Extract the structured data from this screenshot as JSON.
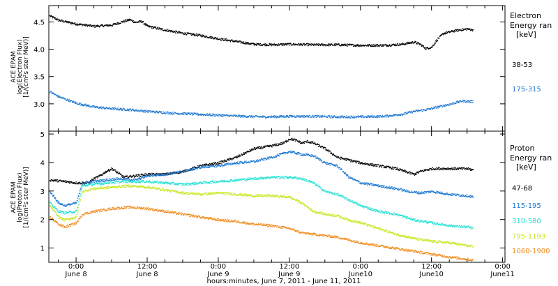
{
  "chart_data": [
    {
      "type": "scatter",
      "panel": "electron",
      "ylabel_lines": [
        "ACE EPAM",
        "log(Electron Flux)",
        "[1/(cm²s ster MeV)]"
      ],
      "ylim": [
        2.5,
        4.8
      ],
      "yticks": [
        3.0,
        3.5,
        4.0,
        4.5
      ],
      "ytick_labels": [
        "3.0",
        "3.5",
        "4.0",
        "4.5"
      ],
      "legend_title": [
        "Electron",
        "Energy ran",
        "[keV]"
      ],
      "series": [
        {
          "name": "38-53",
          "color": "#000000",
          "points": [
            [
              -4.5,
              4.62
            ],
            [
              -3,
              4.54
            ],
            [
              0,
              4.47
            ],
            [
              3,
              4.43
            ],
            [
              6,
              4.45
            ],
            [
              8,
              4.52
            ],
            [
              9,
              4.55
            ],
            [
              10,
              4.5
            ],
            [
              11,
              4.52
            ],
            [
              12,
              4.43
            ],
            [
              15,
              4.36
            ],
            [
              18,
              4.3
            ],
            [
              21,
              4.26
            ],
            [
              24,
              4.2
            ],
            [
              27,
              4.15
            ],
            [
              30,
              4.1
            ],
            [
              33,
              4.09
            ],
            [
              36,
              4.1
            ],
            [
              40,
              4.09
            ],
            [
              44,
              4.09
            ],
            [
              48,
              4.08
            ],
            [
              52,
              4.08
            ],
            [
              55,
              4.1
            ],
            [
              57,
              4.14
            ],
            [
              58,
              4.1
            ],
            [
              59,
              4.02
            ],
            [
              60,
              4.05
            ],
            [
              61,
              4.2
            ],
            [
              62,
              4.3
            ],
            [
              64,
              4.35
            ],
            [
              66,
              4.38
            ],
            [
              67,
              4.36
            ]
          ]
        },
        {
          "name": "175-315",
          "color": "#1e78d2",
          "points": [
            [
              -4.5,
              3.23
            ],
            [
              -3,
              3.14
            ],
            [
              0,
              3.02
            ],
            [
              3,
              2.95
            ],
            [
              6,
              2.92
            ],
            [
              9,
              2.9
            ],
            [
              12,
              2.87
            ],
            [
              16,
              2.84
            ],
            [
              20,
              2.82
            ],
            [
              24,
              2.8
            ],
            [
              28,
              2.78
            ],
            [
              32,
              2.77
            ],
            [
              36,
              2.78
            ],
            [
              40,
              2.78
            ],
            [
              44,
              2.77
            ],
            [
              48,
              2.77
            ],
            [
              52,
              2.78
            ],
            [
              55,
              2.82
            ],
            [
              57,
              2.87
            ],
            [
              59,
              2.9
            ],
            [
              61,
              2.95
            ],
            [
              63,
              3.0
            ],
            [
              65,
              3.06
            ],
            [
              67,
              3.05
            ]
          ]
        }
      ]
    },
    {
      "type": "scatter",
      "panel": "proton",
      "ylabel_lines": [
        "ACE EPAM",
        "log(Proton Flux)",
        "[1/(cm²s ster MeV)]"
      ],
      "ylim": [
        0.5,
        5.1
      ],
      "yticks": [
        1,
        2,
        3,
        4,
        5
      ],
      "ytick_labels": [
        "1",
        "2",
        "3",
        "4",
        "5"
      ],
      "legend_title": [
        "Proton",
        "Energy ran",
        "[keV]"
      ],
      "series": [
        {
          "name": "47-68",
          "color": "#000000",
          "points": [
            [
              -4.5,
              3.4
            ],
            [
              -2,
              3.35
            ],
            [
              0,
              3.3
            ],
            [
              2,
              3.3
            ],
            [
              3,
              3.45
            ],
            [
              4,
              3.55
            ],
            [
              5,
              3.7
            ],
            [
              6,
              3.8
            ],
            [
              8,
              3.5
            ],
            [
              10,
              3.55
            ],
            [
              12,
              3.6
            ],
            [
              15,
              3.6
            ],
            [
              18,
              3.7
            ],
            [
              21,
              3.9
            ],
            [
              24,
              4.0
            ],
            [
              27,
              4.2
            ],
            [
              30,
              4.5
            ],
            [
              33,
              4.6
            ],
            [
              35,
              4.7
            ],
            [
              36,
              4.85
            ],
            [
              37,
              4.8
            ],
            [
              38,
              4.7
            ],
            [
              39,
              4.75
            ],
            [
              40,
              4.7
            ],
            [
              42,
              4.5
            ],
            [
              44,
              4.2
            ],
            [
              46,
              4.1
            ],
            [
              48,
              4.0
            ],
            [
              51,
              3.9
            ],
            [
              54,
              3.8
            ],
            [
              57,
              3.6
            ],
            [
              58,
              3.7
            ],
            [
              60,
              3.8
            ],
            [
              63,
              3.8
            ],
            [
              66,
              3.8
            ],
            [
              67,
              3.75
            ]
          ]
        },
        {
          "name": "115-195",
          "color": "#1e78d2",
          "points": [
            [
              -4.5,
              3.0
            ],
            [
              -3,
              2.6
            ],
            [
              -2,
              2.5
            ],
            [
              0,
              2.6
            ],
            [
              1,
              3.3
            ],
            [
              3,
              3.35
            ],
            [
              5,
              3.4
            ],
            [
              7,
              3.45
            ],
            [
              10,
              3.4
            ],
            [
              12,
              3.55
            ],
            [
              15,
              3.6
            ],
            [
              18,
              3.7
            ],
            [
              21,
              3.85
            ],
            [
              24,
              3.9
            ],
            [
              27,
              4.0
            ],
            [
              30,
              4.05
            ],
            [
              33,
              4.2
            ],
            [
              36,
              4.4
            ],
            [
              38,
              4.3
            ],
            [
              40,
              4.25
            ],
            [
              42,
              4.0
            ],
            [
              44,
              3.9
            ],
            [
              46,
              3.5
            ],
            [
              48,
              3.3
            ],
            [
              51,
              3.2
            ],
            [
              54,
              3.1
            ],
            [
              56,
              3.0
            ],
            [
              58,
              2.95
            ],
            [
              60,
              3.0
            ],
            [
              63,
              2.9
            ],
            [
              66,
              2.85
            ],
            [
              67,
              2.8
            ]
          ]
        },
        {
          "name": "310-580",
          "color": "#1ee1d2",
          "points": [
            [
              -4.5,
              2.6
            ],
            [
              -3,
              2.3
            ],
            [
              -2,
              2.25
            ],
            [
              0,
              2.3
            ],
            [
              1,
              3.2
            ],
            [
              3,
              3.25
            ],
            [
              5,
              3.3
            ],
            [
              8,
              3.35
            ],
            [
              12,
              3.35
            ],
            [
              15,
              3.3
            ],
            [
              18,
              3.25
            ],
            [
              21,
              3.3
            ],
            [
              24,
              3.35
            ],
            [
              27,
              3.4
            ],
            [
              30,
              3.45
            ],
            [
              33,
              3.5
            ],
            [
              36,
              3.5
            ],
            [
              38,
              3.45
            ],
            [
              40,
              3.3
            ],
            [
              42,
              3.0
            ],
            [
              44,
              2.9
            ],
            [
              46,
              2.7
            ],
            [
              48,
              2.5
            ],
            [
              51,
              2.3
            ],
            [
              54,
              2.2
            ],
            [
              57,
              2.0
            ],
            [
              60,
              1.9
            ],
            [
              63,
              1.8
            ],
            [
              66,
              1.75
            ],
            [
              67,
              1.7
            ]
          ]
        },
        {
          "name": "795-1193",
          "color": "#c8e61e",
          "points": [
            [
              -4.5,
              2.5
            ],
            [
              -3,
              2.1
            ],
            [
              -2,
              2.0
            ],
            [
              0,
              2.1
            ],
            [
              1,
              3.0
            ],
            [
              3,
              3.1
            ],
            [
              6,
              3.15
            ],
            [
              9,
              3.2
            ],
            [
              12,
              3.15
            ],
            [
              15,
              3.05
            ],
            [
              18,
              2.95
            ],
            [
              21,
              2.9
            ],
            [
              24,
              2.95
            ],
            [
              27,
              2.9
            ],
            [
              30,
              2.85
            ],
            [
              33,
              2.85
            ],
            [
              36,
              2.8
            ],
            [
              38,
              2.6
            ],
            [
              40,
              2.3
            ],
            [
              42,
              2.2
            ],
            [
              44,
              2.15
            ],
            [
              46,
              2.0
            ],
            [
              48,
              1.9
            ],
            [
              51,
              1.7
            ],
            [
              54,
              1.5
            ],
            [
              57,
              1.35
            ],
            [
              60,
              1.25
            ],
            [
              63,
              1.2
            ],
            [
              66,
              1.1
            ],
            [
              67,
              1.05
            ]
          ]
        },
        {
          "name": "1060-1900",
          "color": "#f08c1e",
          "points": [
            [
              -4.5,
              2.1
            ],
            [
              -3,
              1.85
            ],
            [
              -2,
              1.75
            ],
            [
              0,
              1.9
            ],
            [
              1,
              2.2
            ],
            [
              3,
              2.3
            ],
            [
              6,
              2.4
            ],
            [
              9,
              2.45
            ],
            [
              12,
              2.4
            ],
            [
              15,
              2.3
            ],
            [
              18,
              2.2
            ],
            [
              21,
              2.1
            ],
            [
              24,
              2.0
            ],
            [
              27,
              1.95
            ],
            [
              30,
              1.85
            ],
            [
              33,
              1.8
            ],
            [
              36,
              1.7
            ],
            [
              38,
              1.55
            ],
            [
              40,
              1.5
            ],
            [
              42,
              1.45
            ],
            [
              44,
              1.4
            ],
            [
              46,
              1.3
            ],
            [
              48,
              1.2
            ],
            [
              51,
              1.1
            ],
            [
              54,
              1.0
            ],
            [
              57,
              0.9
            ],
            [
              60,
              0.8
            ],
            [
              63,
              0.7
            ],
            [
              66,
              0.62
            ],
            [
              67,
              0.58
            ]
          ]
        }
      ]
    }
  ],
  "x_axis": {
    "xlim": [
      -4.6,
      72.4
    ],
    "ticks": [
      0,
      12,
      24,
      36,
      48,
      60,
      72
    ],
    "tick_times": [
      "0:00",
      "12:00",
      "0:00",
      "12:00",
      "0:00",
      "12:00",
      "0:00"
    ],
    "tick_dates": [
      "June 8",
      "June 8",
      "June 9",
      "June 9",
      "June10",
      "June10",
      "June11"
    ],
    "xlabel": "hours:minutes, June  7, 2011 - June 11, 2011"
  }
}
